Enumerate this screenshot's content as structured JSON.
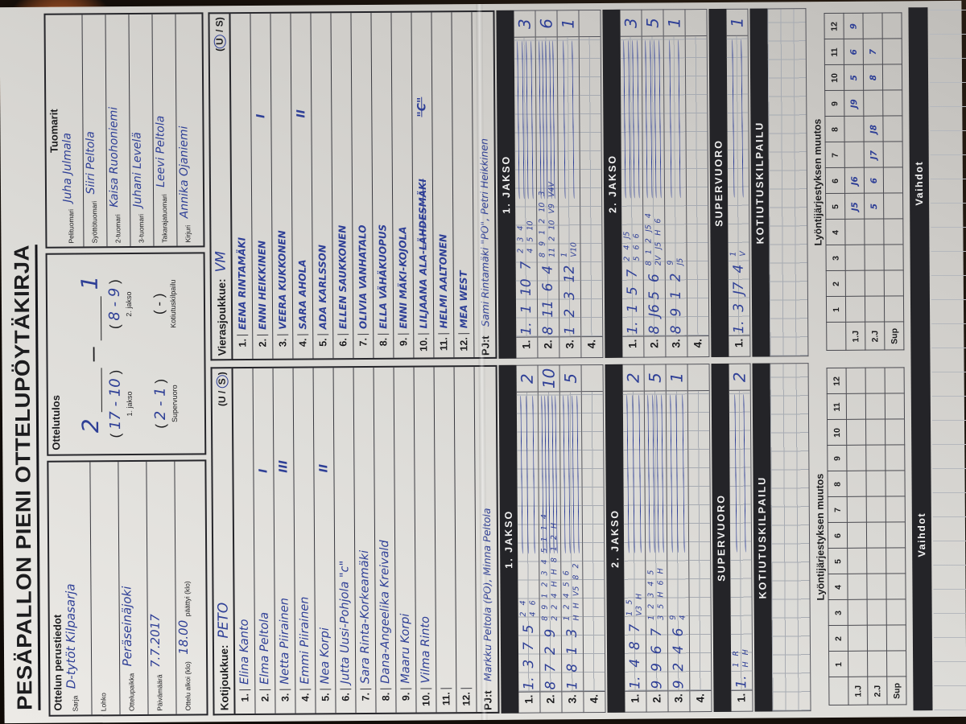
{
  "title": "PESÄPALLON PIENI OTTELUPÖYTÄKIRJA",
  "ink_color": "#2e3f96",
  "paper_color": "#dddcd8",
  "perustiedot": {
    "header": "Ottelun perustiedot",
    "sarja_label": "Sarja",
    "sarja_value": "D-tytöt Kilpasarja",
    "lohko_label": "Lohko",
    "lohko_value": "",
    "paikka_label": "Ottelupaikka",
    "paikka_value": "Peräseinäjoki",
    "pvm_label": "Päivämäärä",
    "pvm_value": "7.7.2017",
    "alkoi_label": "Ottelu alkoi (klo)",
    "alkoi_value": "18.00",
    "paattyi_label": "päättyi (klo)",
    "paattyi_value": ""
  },
  "tulos": {
    "header": "Ottelutulos",
    "main_home": "2",
    "main_dash": "—",
    "main_away": "1",
    "rows": [
      {
        "value": "17 - 10",
        "label": "1. jakso"
      },
      {
        "value": "8 - 9",
        "label": "2. jakso"
      },
      {
        "value": "2 - 1",
        "label": "Supervuoro"
      },
      {
        "value": "-",
        "label": "Kotiutuskilpailu"
      }
    ]
  },
  "tuomarit": {
    "header": "Tuomarit",
    "rows": [
      {
        "label": "Pelituomari",
        "value": "Juha Julmala"
      },
      {
        "label": "Syöttötuomari",
        "value": "Siiri Peltola"
      },
      {
        "label": "2-tuomari",
        "value": "Kaisa Ruohoniemi"
      },
      {
        "label": "3-tuomari",
        "value": "Juhani Levelä"
      },
      {
        "label": "Takarajatuomari",
        "value": "Leevi Peltola"
      },
      {
        "label": "Kirjuri",
        "value": "Annika Ojaniemi"
      }
    ]
  },
  "muutos_title": "Lyöntijärjestyksen muutos",
  "muutos_cols": [
    "1",
    "2",
    "3",
    "4",
    "5",
    "6",
    "7",
    "8",
    "9",
    "10",
    "11",
    "12"
  ],
  "vaihdot_label": "Vaihdot",
  "home": {
    "team_label": "Kotijoukkue:",
    "team_value": "PETO",
    "us_pre": "(U /",
    "us_circ": "S",
    "us_post": ")",
    "players": [
      {
        "num": "1.",
        "name": "Elina Kanto",
        "mark": ""
      },
      {
        "num": "2.",
        "name": "Elma Peltola",
        "mark": "I"
      },
      {
        "num": "3.",
        "name": "Netta Piirainen",
        "mark": "III"
      },
      {
        "num": "4.",
        "name": "Emmi Piirainen",
        "mark": ""
      },
      {
        "num": "5.",
        "name": "Nea Korpi",
        "mark": "II"
      },
      {
        "num": "6.",
        "name": "Jutta Uusi-Pohjola \"c\"",
        "mark": ""
      },
      {
        "num": "7.",
        "name": "Sara Rinta-Korkeamäki",
        "mark": ""
      },
      {
        "num": "8.",
        "name": "Dana-Angeelika Kreivald",
        "mark": ""
      },
      {
        "num": "9.",
        "name": "Maaru Korpi",
        "mark": ""
      },
      {
        "num": "10.",
        "name": "Vilma Rinto",
        "mark": ""
      },
      {
        "num": "11.",
        "name": "",
        "mark": ""
      },
      {
        "num": "12.",
        "name": "",
        "mark": ""
      }
    ],
    "pj_label": "PJ:t",
    "pj_value": "Markku Peltola (PO), Minna Peltola",
    "sections": [
      {
        "header": "1. JAKSO",
        "rows": [
          {
            "label": "1.",
            "big": "1.  3  7  5",
            "small_top": "2 4",
            "small_bottom": "4 6",
            "total": "2"
          },
          {
            "label": "2.",
            "big": "8  7  2  9",
            "small_top": "8 9 1 2 3 4 5 1 1 4",
            "small_bottom": "2 2 4 H H 8 1 2 H",
            "total": "10"
          },
          {
            "label": "3.",
            "big": "1  8  1  3",
            "small_top": "1 2 4 5 6",
            "small_bottom": "H H V5 8 2",
            "total": "5"
          },
          {
            "label": "4.",
            "big": "",
            "small_top": "",
            "small_bottom": "",
            "total": ""
          }
        ]
      },
      {
        "header": "2. JAKSO",
        "rows": [
          {
            "label": "1.",
            "big": "1.  4  8  7",
            "small_top": "1 5",
            "small_bottom": "V3 H",
            "total": "2"
          },
          {
            "label": "2.",
            "big": "9  9  6  7",
            "small_top": "1 2 3 4 5",
            "small_bottom": "3 5 H 6 H",
            "total": "5"
          },
          {
            "label": "3.",
            "big": "9  2  4  6",
            "small_top": "9",
            "small_bottom": "4",
            "total": "1"
          },
          {
            "label": "4.",
            "big": "",
            "small_top": "",
            "small_bottom": "",
            "total": ""
          }
        ]
      },
      {
        "header": "SUPERVUORO",
        "rows": [
          {
            "label": "1.",
            "big": "1.",
            "small_top": "1 R",
            "small_bottom": "H H",
            "total": "2"
          }
        ]
      },
      {
        "header": "KOTIUTUSKILPAILU",
        "rows": []
      }
    ],
    "muutos": [
      {
        "label": "1.J",
        "cells": [
          "",
          "",
          "",
          "",
          "",
          "",
          "",
          "",
          "",
          "",
          "",
          ""
        ]
      },
      {
        "label": "2.J",
        "cells": [
          "",
          "",
          "",
          "",
          "",
          "",
          "",
          "",
          "",
          "",
          "",
          ""
        ]
      },
      {
        "label": "Sup",
        "cells": [
          "",
          "",
          "",
          "",
          "",
          "",
          "",
          "",
          "",
          "",
          "",
          ""
        ]
      }
    ]
  },
  "away": {
    "team_label": "Vierasjoukkue:",
    "team_value": "VM",
    "us_pre": "(",
    "us_circ": "U",
    "us_post": "/ S)",
    "players": [
      {
        "num": "1.",
        "name": "EENA RINTAMÄKI",
        "mark": ""
      },
      {
        "num": "2.",
        "name": "ENNI HEIKKINEN",
        "mark": "I"
      },
      {
        "num": "3.",
        "name": "VEERA KUKKONEN",
        "mark": ""
      },
      {
        "num": "4.",
        "name": "SARA AHOLA",
        "mark": "II"
      },
      {
        "num": "5.",
        "name": "ADA KARLSSON",
        "mark": ""
      },
      {
        "num": "6.",
        "name": "ELLEN SAUKKONEN",
        "mark": ""
      },
      {
        "num": "7.",
        "name": "OLIVIA VANHATALO",
        "mark": ""
      },
      {
        "num": "8.",
        "name": "ELLA VÄHÄKUOPUS",
        "mark": ""
      },
      {
        "num": "9.",
        "name": "ENNI MÄKI-KOJOLA",
        "mark": ""
      },
      {
        "num": "10.",
        "name": "LILJAANA ALA-",
        "struck": "LÄHDESMÄKI",
        "mark": "\"C\""
      },
      {
        "num": "11.",
        "name": "HELMI AALTONEN",
        "mark": ""
      },
      {
        "num": "12.",
        "name": "MEA WEST",
        "mark": ""
      }
    ],
    "pj_label": "PJ:t",
    "pj_value": "Sami Rintamäki \"PO\", Petri Heikkinen",
    "sections": [
      {
        "header": "1. JAKSO",
        "rows": [
          {
            "label": "1.",
            "big": "1.  1  10  7",
            "small_top": "2 3 4",
            "small_bottom": "4 5 10",
            "total": "3"
          },
          {
            "label": "2.",
            "big": "8  11  6  4",
            "small_top": "8 9 1 2 10 3",
            "small_bottom": "11 2 10 V9 V4V",
            "total": "6"
          },
          {
            "label": "3.",
            "big": "1  2  3  12",
            "small_top": "1",
            "small_bottom": "V10",
            "total": "1"
          },
          {
            "label": "4.",
            "big": "",
            "small_top": "",
            "small_bottom": "",
            "total": ""
          }
        ]
      },
      {
        "header": "2. JAKSO",
        "rows": [
          {
            "label": "1.",
            "big": "1.  1  5  7",
            "small_top": "2 4 J5",
            "small_bottom": "5 6 6",
            "total": "3"
          },
          {
            "label": "2.",
            "big": "8  J6 5  6",
            "small_top": "8 1 2 J5 4",
            "small_bottom": "2V J5 H 6",
            "total": "5"
          },
          {
            "label": "3.",
            "big": "8  9  1  2",
            "small_top": "9",
            "small_bottom": "J5",
            "total": "1"
          },
          {
            "label": "4.",
            "big": "",
            "small_top": "",
            "small_bottom": "",
            "total": ""
          }
        ]
      },
      {
        "header": "SUPERVUORO",
        "rows": [
          {
            "label": "1.",
            "big": "1.  3  J7  4",
            "small_top": "1",
            "small_bottom": "V",
            "total": "1"
          }
        ]
      },
      {
        "header": "KOTIUTUSKILPAILU",
        "rows": []
      }
    ],
    "muutos": [
      {
        "label": "1.J",
        "cells": [
          "",
          "",
          "",
          "",
          "J5",
          "J6",
          "",
          "",
          "J9",
          "5",
          "6",
          "9"
        ]
      },
      {
        "label": "2.J",
        "cells": [
          "",
          "",
          "",
          "",
          "5",
          "6",
          "J7",
          "J8",
          "",
          "8",
          "7",
          ""
        ]
      },
      {
        "label": "Sup",
        "cells": [
          "",
          "",
          "",
          "",
          "",
          "",
          "",
          "",
          "",
          "",
          "",
          ""
        ]
      }
    ]
  }
}
